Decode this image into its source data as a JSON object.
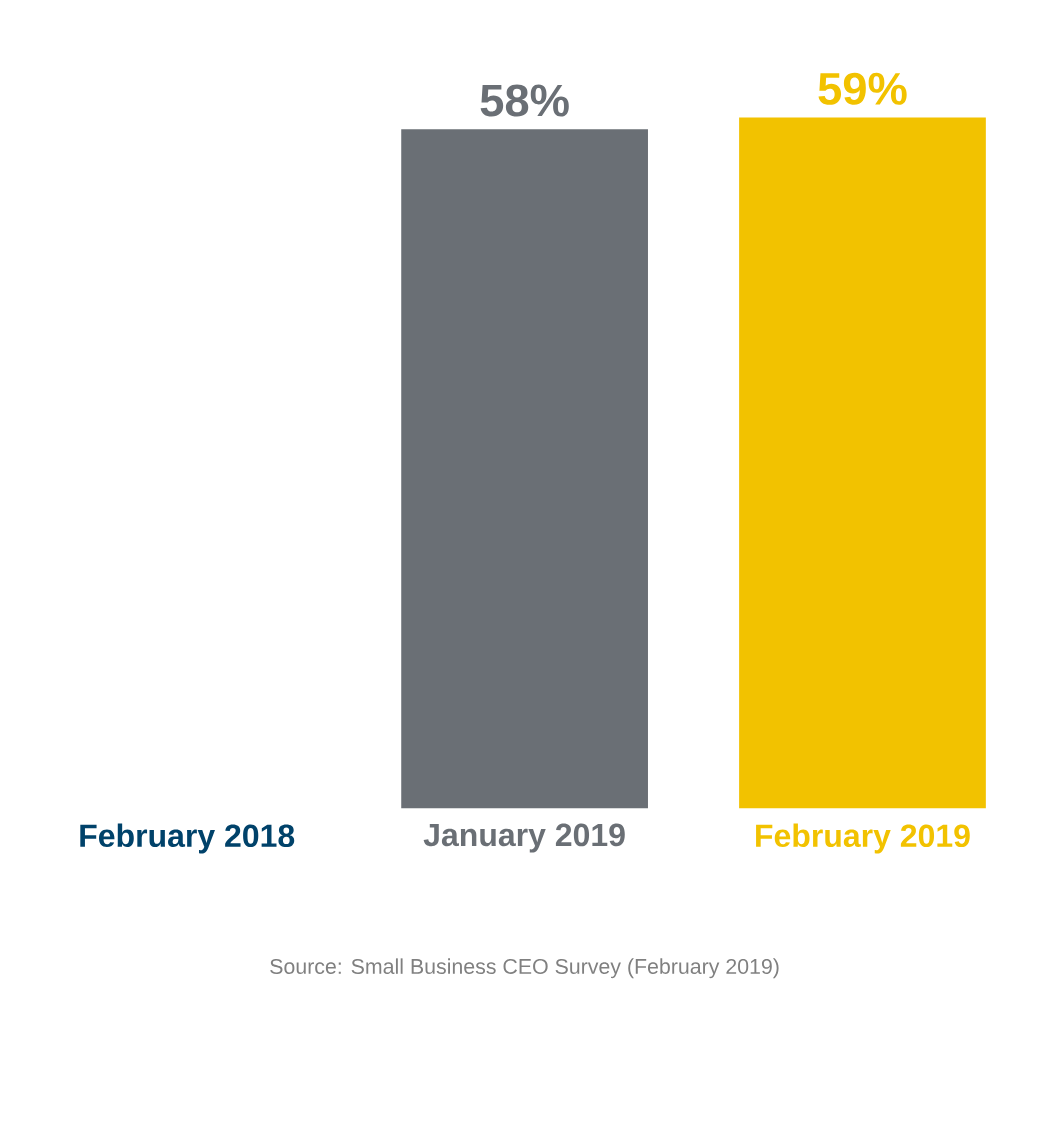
{
  "chart_data": {
    "type": "bar",
    "categories": [
      "February 2018",
      "January 2019",
      "February 2019"
    ],
    "values": [
      null,
      58,
      59
    ],
    "colors": [
      "#00426a",
      "#6a6f75",
      "#f2c200"
    ],
    "value_labels": [
      null,
      "58%",
      "59%"
    ],
    "annotations": [
      "Source: Small Business CEO Survey (February 2019)"
    ]
  }
}
